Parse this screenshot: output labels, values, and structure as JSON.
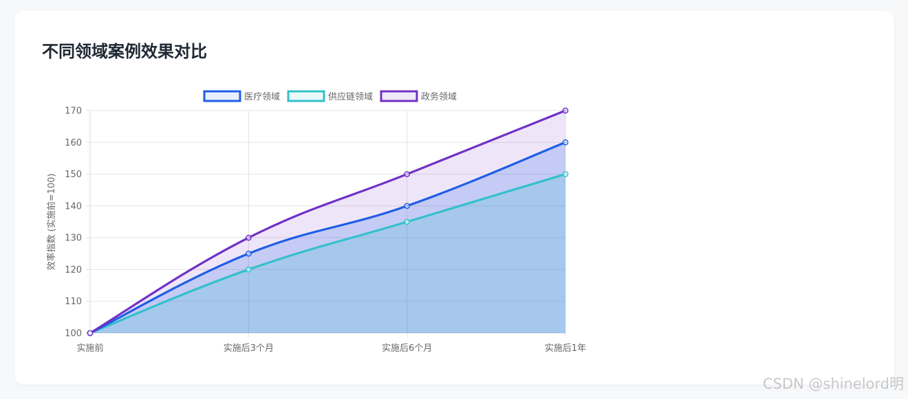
{
  "card": {
    "title": "不同领域案例效果对比"
  },
  "watermark": "CSDN @shinelord明",
  "chart_data": {
    "type": "line",
    "title": "",
    "xlabel": "",
    "ylabel": "效率指数 (实施前=100)",
    "categories": [
      "实施前",
      "实施后3个月",
      "实施后6个月",
      "实施后1年"
    ],
    "ylim": [
      100,
      170
    ],
    "yticks": [
      100,
      110,
      120,
      130,
      140,
      150,
      160,
      170
    ],
    "grid": true,
    "legend_position": "top",
    "fill": true,
    "smooth": true,
    "series": [
      {
        "name": "医疗领域",
        "values": [
          100,
          125,
          140,
          160
        ],
        "color": "#1f5de6",
        "fill": "rgba(31, 93, 230, 0.2)"
      },
      {
        "name": "供应链领域",
        "values": [
          100,
          120,
          135,
          150
        ],
        "color": "#33c0cc",
        "fill": "rgba(51, 192, 204, 0.2)"
      },
      {
        "name": "政务领域",
        "values": [
          100,
          130,
          150,
          170
        ],
        "color": "#7030c8",
        "fill": "rgba(112, 48, 200, 0.12)"
      }
    ]
  }
}
